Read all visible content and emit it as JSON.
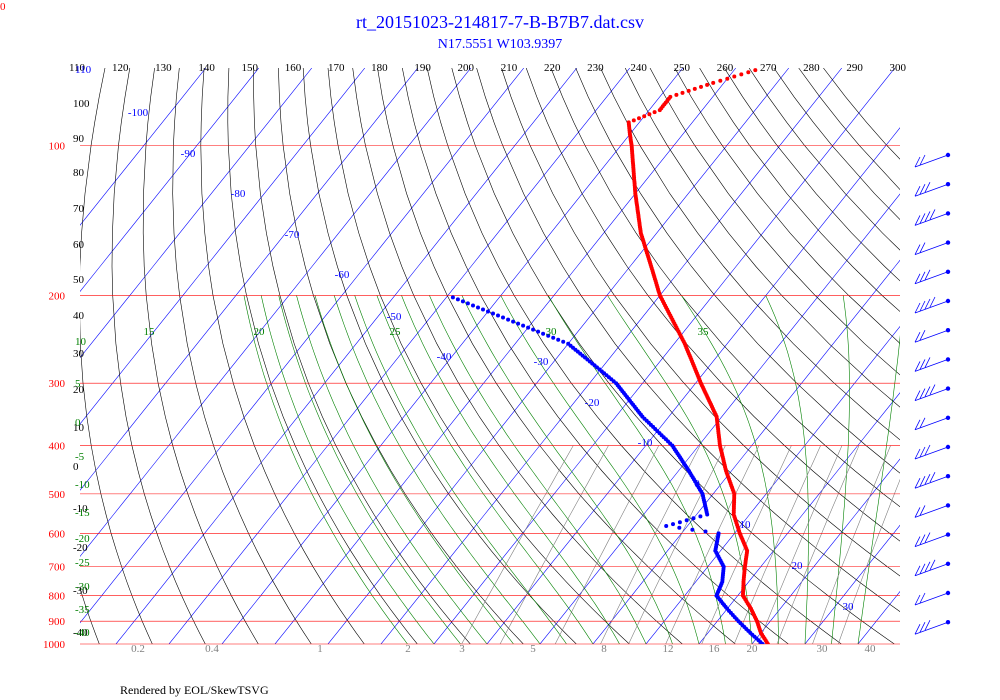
{
  "chart_data": {
    "type": "skew-t log-p diagram",
    "title": "rt_20151023-214817-7-B-B7B7.dat.csv",
    "subtitle": "N17.5551 W103.9397",
    "footer": "Rendered by EOL/SkewTSVG",
    "corner_label": "0",
    "pressure_labels": [
      "100",
      "200",
      "300",
      "400",
      "500",
      "600",
      "700",
      "800",
      "900",
      "1000"
    ],
    "pressure_values": [
      100,
      200,
      300,
      400,
      500,
      600,
      700,
      800,
      900,
      1000
    ],
    "theta_labels": [
      "110",
      "120",
      "130",
      "140",
      "150",
      "160",
      "170",
      "180",
      "190",
      "200",
      "210",
      "220",
      "230",
      "240",
      "250",
      "260",
      "270",
      "280",
      "290",
      "300"
    ],
    "temperature_labels": [
      "-100",
      "-90",
      "-80",
      "-70",
      "-60",
      "-50",
      "-40",
      "-30",
      "-20",
      "-10",
      "0",
      "10",
      "20",
      "30"
    ],
    "moist_adiabat_labels": [
      "15",
      "20",
      "25",
      "30",
      "35"
    ],
    "left_adiabat_labels": [
      "100",
      "90",
      "80",
      "70",
      "60",
      "50",
      "40",
      "30",
      "20",
      "10",
      "0",
      "-10",
      "-20",
      "-30",
      "-40"
    ],
    "left_isotherm_labels": [
      "110",
      "10",
      "5",
      "0",
      "-5",
      "-10",
      "-15",
      "-20",
      "-25",
      "-30",
      "-35",
      "-40"
    ],
    "mixing_ratio_labels": [
      "0.2",
      "0.4",
      "1",
      "2",
      "3",
      "5",
      "8",
      "12",
      "16",
      "20",
      "30",
      "40"
    ],
    "temperature_profile": {
      "name": "temperature",
      "color": "#ff0000",
      "p": [
        1000,
        950,
        900,
        850,
        800,
        750,
        700,
        650,
        600,
        550,
        500,
        450,
        400,
        350,
        300,
        250,
        200,
        175,
        150,
        125,
        100,
        95,
        90,
        85,
        80,
        75,
        70
      ],
      "t": [
        23,
        20,
        17.5,
        14.5,
        11,
        9,
        7,
        5,
        1,
        -3,
        -6,
        -11,
        -16,
        -21,
        -29,
        -38,
        -50,
        -56,
        -63,
        -70,
        -78,
        -80,
        -82,
        -78,
        -78,
        -72,
        -65
      ]
    },
    "dewpoint_profile": {
      "name": "dewpoint",
      "color": "#0000ff",
      "p": [
        1000,
        950,
        900,
        850,
        800,
        750,
        700,
        650,
        600,
        580,
        550,
        500,
        450,
        400,
        350,
        300,
        250,
        200
      ],
      "td": [
        22,
        18,
        14,
        10,
        6,
        5,
        3,
        -1,
        -3,
        -14,
        -8,
        -12,
        -18,
        -25,
        -35,
        -45,
        -60,
        -90
      ]
    },
    "colors": {
      "isobar": "#ff0000",
      "isotherm": "#0000ff",
      "dry_adiabat": "#000000",
      "moist_adiabat": "#008000",
      "mixing_ratio": "#808080",
      "title": "#0000ff"
    },
    "wind_barb_count": 17
  }
}
